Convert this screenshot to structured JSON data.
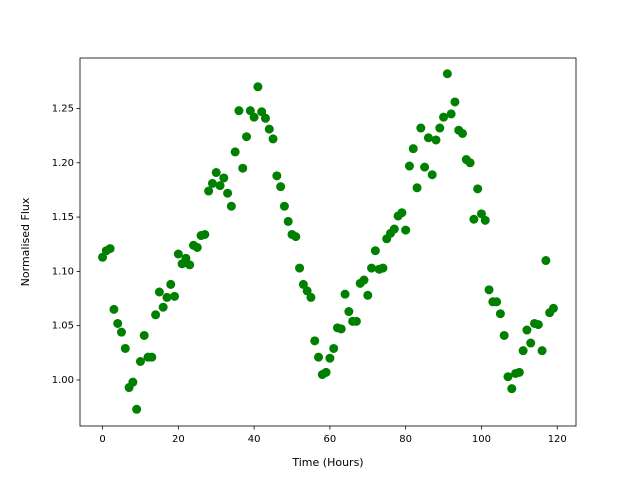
{
  "chart_data": {
    "type": "scatter",
    "xlabel": "Time (Hours)",
    "ylabel": "Normalised Flux",
    "color": "#008000",
    "x": [
      0,
      1,
      2,
      3,
      4,
      5,
      6,
      7,
      8,
      9,
      10,
      11,
      12,
      13,
      14,
      15,
      16,
      17,
      18,
      19,
      20,
      21,
      22,
      23,
      24,
      25,
      26,
      27,
      28,
      29,
      30,
      31,
      32,
      33,
      34,
      35,
      36,
      37,
      38,
      39,
      40,
      41,
      42,
      43,
      44,
      45,
      46,
      47,
      48,
      49,
      50,
      51,
      52,
      53,
      54,
      55,
      56,
      57,
      58,
      59,
      60,
      61,
      62,
      63,
      64,
      65,
      66,
      67,
      68,
      69,
      70,
      71,
      72,
      73,
      74,
      75,
      76,
      77,
      78,
      79,
      80,
      81,
      82,
      83,
      84,
      85,
      86,
      87,
      88,
      89,
      90,
      91,
      92,
      93,
      94,
      95,
      96,
      97,
      98,
      99,
      100,
      101,
      102,
      103,
      104,
      105,
      106,
      107,
      108,
      109,
      110,
      111,
      112,
      113,
      114,
      115,
      116,
      117,
      118,
      119
    ],
    "y": [
      1.113,
      1.119,
      1.121,
      1.065,
      1.052,
      1.044,
      1.029,
      0.993,
      0.998,
      0.973,
      1.017,
      1.041,
      1.021,
      1.021,
      1.06,
      1.081,
      1.067,
      1.076,
      1.088,
      1.077,
      1.116,
      1.107,
      1.112,
      1.106,
      1.124,
      1.122,
      1.133,
      1.134,
      1.174,
      1.181,
      1.191,
      1.179,
      1.186,
      1.172,
      1.16,
      1.21,
      1.248,
      1.195,
      1.224,
      1.248,
      1.242,
      1.27,
      1.247,
      1.241,
      1.231,
      1.222,
      1.188,
      1.178,
      1.16,
      1.146,
      1.134,
      1.132,
      1.103,
      1.088,
      1.082,
      1.076,
      1.036,
      1.021,
      1.005,
      1.007,
      1.02,
      1.029,
      1.048,
      1.047,
      1.079,
      1.063,
      1.054,
      1.054,
      1.089,
      1.092,
      1.078,
      1.103,
      1.119,
      1.102,
      1.103,
      1.13,
      1.135,
      1.139,
      1.151,
      1.154,
      1.138,
      1.197,
      1.213,
      1.177,
      1.232,
      1.196,
      1.223,
      1.189,
      1.221,
      1.232,
      1.242,
      1.282,
      1.245,
      1.256,
      1.23,
      1.227,
      1.203,
      1.2,
      1.148,
      1.176,
      1.153,
      1.147,
      1.083,
      1.072,
      1.072,
      1.061,
      1.041,
      1.003,
      0.992,
      1.006,
      1.007,
      1.027,
      1.046,
      1.034,
      1.052,
      1.051,
      1.027,
      1.11,
      1.062,
      1.066
    ],
    "xlim": [
      -5.95,
      124.95
    ],
    "ylim": [
      0.9576,
      1.2965
    ],
    "xticks": [
      0,
      20,
      40,
      60,
      80,
      100,
      120
    ],
    "yticks": [
      {
        "value": 1.0,
        "label": "1.00"
      },
      1.05,
      {
        "value": 1.1,
        "label": "1.10"
      },
      1.15,
      {
        "value": 1.2,
        "label": "1.20"
      },
      1.25
    ]
  }
}
